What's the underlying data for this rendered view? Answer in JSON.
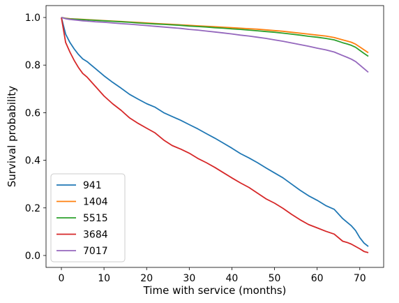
{
  "chart_data": {
    "type": "line",
    "xlabel": "Time with service (months)",
    "ylabel": "Survival probability",
    "xlim": [
      -3.6,
      75.6
    ],
    "ylim": [
      -0.05,
      1.05
    ],
    "x_ticks": [
      0,
      10,
      20,
      30,
      40,
      50,
      60,
      70
    ],
    "y_ticks": [
      0.0,
      0.2,
      0.4,
      0.6,
      0.8,
      1.0
    ],
    "x_tick_labels": [
      "0",
      "10",
      "20",
      "30",
      "40",
      "50",
      "60",
      "70"
    ],
    "y_tick_labels": [
      "0.0",
      "0.2",
      "0.4",
      "0.6",
      "0.8",
      "1.0"
    ],
    "grid": false,
    "legend_position": "lower left",
    "x": [
      0,
      1,
      2,
      3,
      4,
      5,
      6,
      8,
      10,
      12,
      14,
      16,
      18,
      20,
      22,
      24,
      26,
      28,
      30,
      32,
      34,
      36,
      38,
      40,
      42,
      44,
      46,
      48,
      50,
      52,
      54,
      56,
      58,
      60,
      62,
      64,
      66,
      67,
      68,
      69,
      70,
      71,
      72
    ],
    "series": [
      {
        "name": "941",
        "color": "#1f77b4",
        "values": [
          1.0,
          0.93,
          0.895,
          0.868,
          0.845,
          0.826,
          0.815,
          0.785,
          0.755,
          0.728,
          0.703,
          0.677,
          0.657,
          0.638,
          0.623,
          0.6,
          0.584,
          0.568,
          0.55,
          0.532,
          0.512,
          0.493,
          0.472,
          0.451,
          0.428,
          0.41,
          0.39,
          0.368,
          0.347,
          0.326,
          0.3,
          0.274,
          0.251,
          0.232,
          0.21,
          0.194,
          0.155,
          0.14,
          0.125,
          0.105,
          0.075,
          0.052,
          0.038
        ]
      },
      {
        "name": "1404",
        "color": "#ff7f0e",
        "values": [
          1.0,
          0.997,
          0.995,
          0.994,
          0.993,
          0.992,
          0.991,
          0.989,
          0.987,
          0.985,
          0.983,
          0.981,
          0.979,
          0.977,
          0.975,
          0.973,
          0.971,
          0.969,
          0.967,
          0.965,
          0.963,
          0.961,
          0.959,
          0.957,
          0.955,
          0.953,
          0.951,
          0.948,
          0.945,
          0.942,
          0.938,
          0.934,
          0.93,
          0.926,
          0.922,
          0.916,
          0.906,
          0.901,
          0.896,
          0.888,
          0.876,
          0.864,
          0.852
        ]
      },
      {
        "name": "5515",
        "color": "#2ca02c",
        "values": [
          1.0,
          0.996,
          0.994,
          0.993,
          0.992,
          0.991,
          0.99,
          0.988,
          0.986,
          0.984,
          0.982,
          0.98,
          0.977,
          0.975,
          0.973,
          0.971,
          0.969,
          0.967,
          0.964,
          0.962,
          0.96,
          0.957,
          0.955,
          0.952,
          0.95,
          0.947,
          0.944,
          0.941,
          0.938,
          0.934,
          0.93,
          0.926,
          0.921,
          0.917,
          0.912,
          0.906,
          0.894,
          0.889,
          0.883,
          0.875,
          0.862,
          0.849,
          0.837
        ]
      },
      {
        "name": "3684",
        "color": "#d62728",
        "values": [
          1.0,
          0.895,
          0.855,
          0.82,
          0.79,
          0.765,
          0.75,
          0.71,
          0.67,
          0.638,
          0.61,
          0.578,
          0.555,
          0.535,
          0.515,
          0.485,
          0.462,
          0.447,
          0.43,
          0.408,
          0.39,
          0.37,
          0.348,
          0.326,
          0.305,
          0.286,
          0.262,
          0.238,
          0.22,
          0.198,
          0.173,
          0.15,
          0.13,
          0.116,
          0.102,
          0.09,
          0.06,
          0.055,
          0.048,
          0.038,
          0.028,
          0.017,
          0.012
        ]
      },
      {
        "name": "7017",
        "color": "#9467bd",
        "values": [
          1.0,
          0.995,
          0.992,
          0.99,
          0.988,
          0.986,
          0.985,
          0.982,
          0.98,
          0.977,
          0.974,
          0.972,
          0.969,
          0.966,
          0.963,
          0.96,
          0.957,
          0.954,
          0.95,
          0.947,
          0.943,
          0.939,
          0.935,
          0.931,
          0.926,
          0.922,
          0.917,
          0.912,
          0.906,
          0.9,
          0.893,
          0.886,
          0.879,
          0.871,
          0.864,
          0.855,
          0.84,
          0.833,
          0.825,
          0.815,
          0.8,
          0.785,
          0.77
        ]
      }
    ]
  }
}
